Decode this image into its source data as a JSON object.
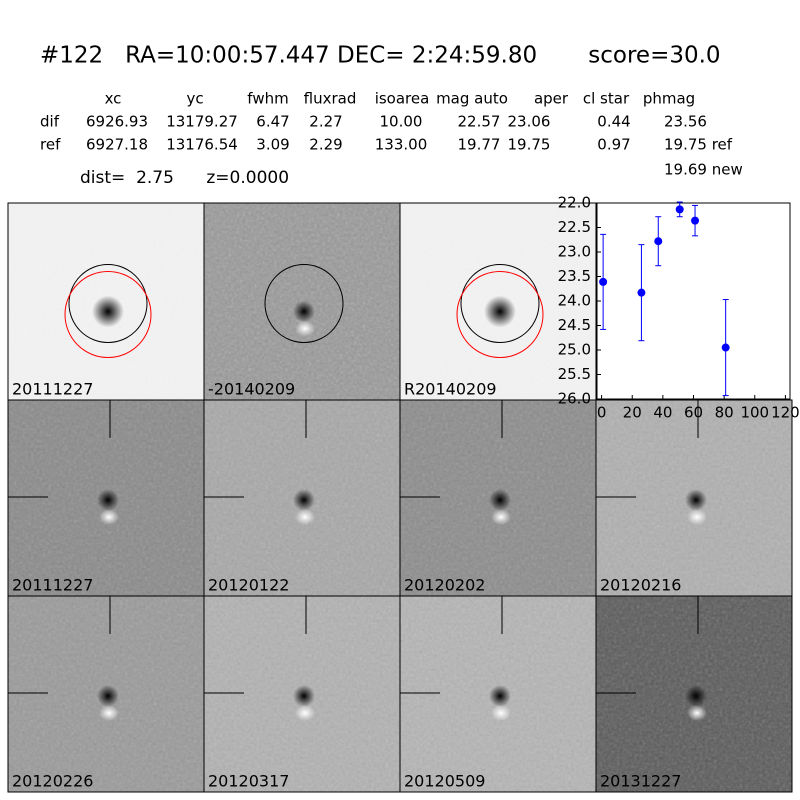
{
  "header": {
    "title": "#122   RA=10:00:57.447 DEC= 2:24:59.80       score=30.0",
    "dist_line": "dist=  2.75      z=0.0000"
  },
  "table": {
    "columns": [
      "xc",
      "yc",
      "fwhm",
      "fluxrad",
      "isoarea",
      "mag auto",
      "aper",
      "cl star",
      "phmag"
    ],
    "rows": [
      [
        "dif",
        "6926.93",
        "13179.27",
        "6.47",
        "2.27",
        "10.00",
        "22.57",
        "23.06",
        "0.44",
        "23.56"
      ],
      [
        "ref",
        "6927.18",
        "13176.54",
        "3.09",
        "2.29",
        "133.00",
        "19.77",
        "19.75",
        "0.97",
        "19.75 ref"
      ]
    ],
    "extra": "19.69 new"
  },
  "panels": {
    "top": [
      "20111227",
      "-20140209",
      "R20140209"
    ],
    "stamps": [
      "20111227",
      "20120122",
      "20120202",
      "20120216",
      "20120226",
      "20120317",
      "20120509",
      "20131227"
    ]
  },
  "chart_data": {
    "type": "errorbar",
    "color": "#0000ff",
    "x": [
      1,
      26,
      37,
      51,
      61,
      81
    ],
    "values": [
      23.61,
      23.83,
      22.78,
      22.13,
      22.36,
      24.95
    ],
    "errors": [
      0.97,
      0.98,
      0.5,
      0.15,
      0.31,
      0.98
    ],
    "xlim": [
      -3,
      123
    ],
    "ylim": [
      26,
      22
    ],
    "xticks": [
      0,
      20,
      40,
      60,
      80,
      100,
      120
    ],
    "yticks": [
      {
        "value": 22,
        "label": "22.0"
      },
      {
        "value": 22.5,
        "label": "22.5"
      },
      {
        "value": 23,
        "label": "23.0"
      },
      {
        "value": 23.5,
        "label": "23.5"
      },
      {
        "value": 24,
        "label": "24.0"
      },
      {
        "value": 24.5,
        "label": "24.5"
      },
      {
        "value": 25,
        "label": "25.0"
      },
      {
        "value": 25.5,
        "label": "25.5"
      },
      {
        "value": 26,
        "label": "26.0"
      }
    ]
  }
}
